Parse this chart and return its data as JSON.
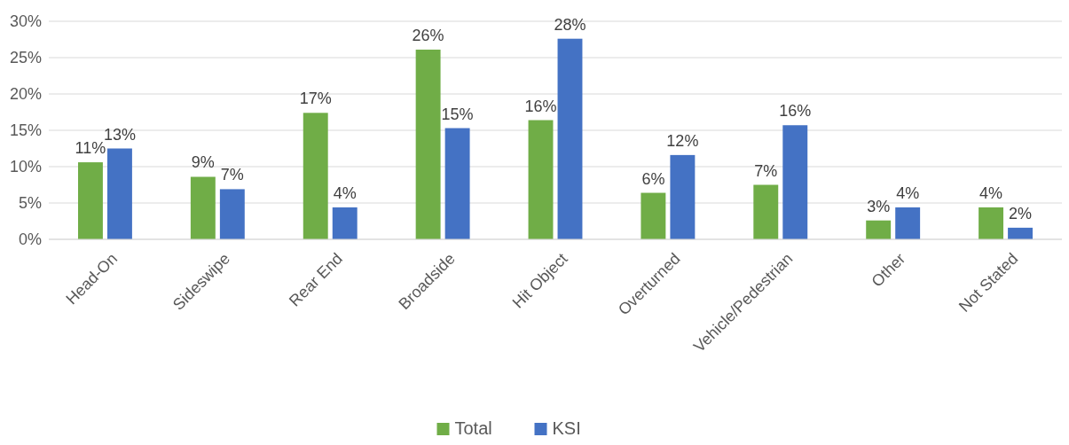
{
  "chart_data": {
    "type": "bar",
    "categories": [
      "Head-On",
      "Sideswipe",
      "Rear End",
      "Broadside",
      "Hit Object",
      "Overturned",
      "Vehicle/Pedestrian",
      "Other",
      "Not Stated"
    ],
    "series": [
      {
        "name": "Total",
        "color": "#70ad47",
        "values": [
          10.6,
          8.6,
          17.4,
          26.1,
          16.4,
          6.4,
          7.5,
          2.6,
          4.4
        ],
        "value_labels": [
          "11%",
          "9%",
          "17%",
          "26%",
          "16%",
          "6%",
          "7%",
          "3%",
          "4%"
        ]
      },
      {
        "name": "KSI",
        "color": "#4472c4",
        "values": [
          12.5,
          6.9,
          4.4,
          15.3,
          27.6,
          11.6,
          15.7,
          4.4,
          1.6
        ],
        "value_labels": [
          "13%",
          "7%",
          "4%",
          "15%",
          "28%",
          "12%",
          "16%",
          "4%",
          "2%"
        ]
      }
    ],
    "ylim": [
      0,
      30
    ],
    "yticks": [
      {
        "value": 0,
        "label": "0%"
      },
      {
        "value": 5,
        "label": "5%"
      },
      {
        "value": 10,
        "label": "10%"
      },
      {
        "value": 15,
        "label": "15%"
      },
      {
        "value": 20,
        "label": "20%"
      },
      {
        "value": 25,
        "label": "25%"
      },
      {
        "value": 30,
        "label": "30%"
      }
    ],
    "grid": "y",
    "legend": "bottom"
  }
}
